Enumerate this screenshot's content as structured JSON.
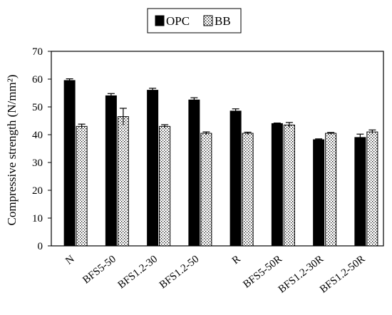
{
  "chart_data": {
    "type": "bar",
    "title": "",
    "xlabel": "",
    "ylabel": "Compressive strength (N/mm²)",
    "ylim": [
      0,
      70
    ],
    "yticks": [
      0,
      10,
      20,
      30,
      40,
      50,
      60,
      70
    ],
    "grid": false,
    "legend_position": "top-center",
    "categories": [
      "N",
      "BFS5-50",
      "BFS1.2-30",
      "BFS1.2-50",
      "R",
      "BFS5-50R",
      "BFS1.2-30R",
      "BFS1.2-50R"
    ],
    "series": [
      {
        "name": "OPC",
        "pattern": "solid",
        "color": "#000000",
        "values": [
          59.5,
          54.0,
          56.0,
          52.5,
          48.5,
          44.0,
          38.2,
          39.0
        ],
        "errors": [
          0.6,
          0.8,
          0.7,
          0.8,
          0.8,
          0.2,
          0.3,
          1.2
        ]
      },
      {
        "name": "BB",
        "pattern": "dotted",
        "color": "#000000",
        "values": [
          43.0,
          46.5,
          43.0,
          40.5,
          40.5,
          43.5,
          40.5,
          41.0
        ],
        "errors": [
          0.8,
          3.0,
          0.6,
          0.5,
          0.4,
          0.9,
          0.3,
          0.7
        ]
      }
    ]
  }
}
